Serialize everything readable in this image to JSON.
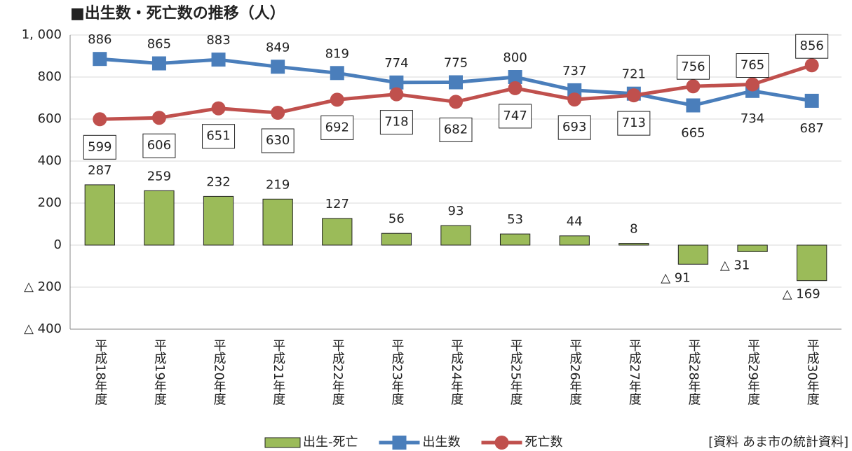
{
  "chart_data": {
    "type": "combo",
    "title": "■出生数・死亡数の推移（人）",
    "categories": [
      "平成18年度",
      "平成19年度",
      "平成20年度",
      "平成21年度",
      "平成22年度",
      "平成23年度",
      "平成24年度",
      "平成25年度",
      "平成26年度",
      "平成27年度",
      "平成28年度",
      "平成29年度",
      "平成30年度"
    ],
    "series": [
      {
        "name": "出生-死亡",
        "type": "bar",
        "color": "#9bbb59",
        "values": [
          287,
          259,
          232,
          219,
          127,
          56,
          93,
          53,
          44,
          8,
          -91,
          -31,
          -169
        ],
        "value_labels": [
          "287",
          "259",
          "232",
          "219",
          "127",
          "56",
          "93",
          "53",
          "44",
          "8",
          "△ 91",
          "△ 31",
          "△ 169"
        ]
      },
      {
        "name": "出生数",
        "type": "line",
        "marker": "square",
        "color": "#4a7ebb",
        "values": [
          886,
          865,
          883,
          849,
          819,
          774,
          775,
          800,
          737,
          721,
          665,
          734,
          687
        ]
      },
      {
        "name": "死亡数",
        "type": "line",
        "marker": "circle",
        "color": "#c0504d",
        "values": [
          599,
          606,
          651,
          630,
          692,
          718,
          682,
          747,
          693,
          713,
          756,
          765,
          856
        ]
      }
    ],
    "ylim": [
      -400,
      1000
    ],
    "yticks": [
      {
        "value": -400,
        "label": "△ 400"
      },
      {
        "value": -200,
        "label": "△ 200"
      },
      0,
      200,
      400,
      600,
      800,
      {
        "value": 1000,
        "label": "1, 000"
      }
    ],
    "grid": true,
    "legend": "bottom",
    "source": "[資料  あま市の統計資料]"
  }
}
